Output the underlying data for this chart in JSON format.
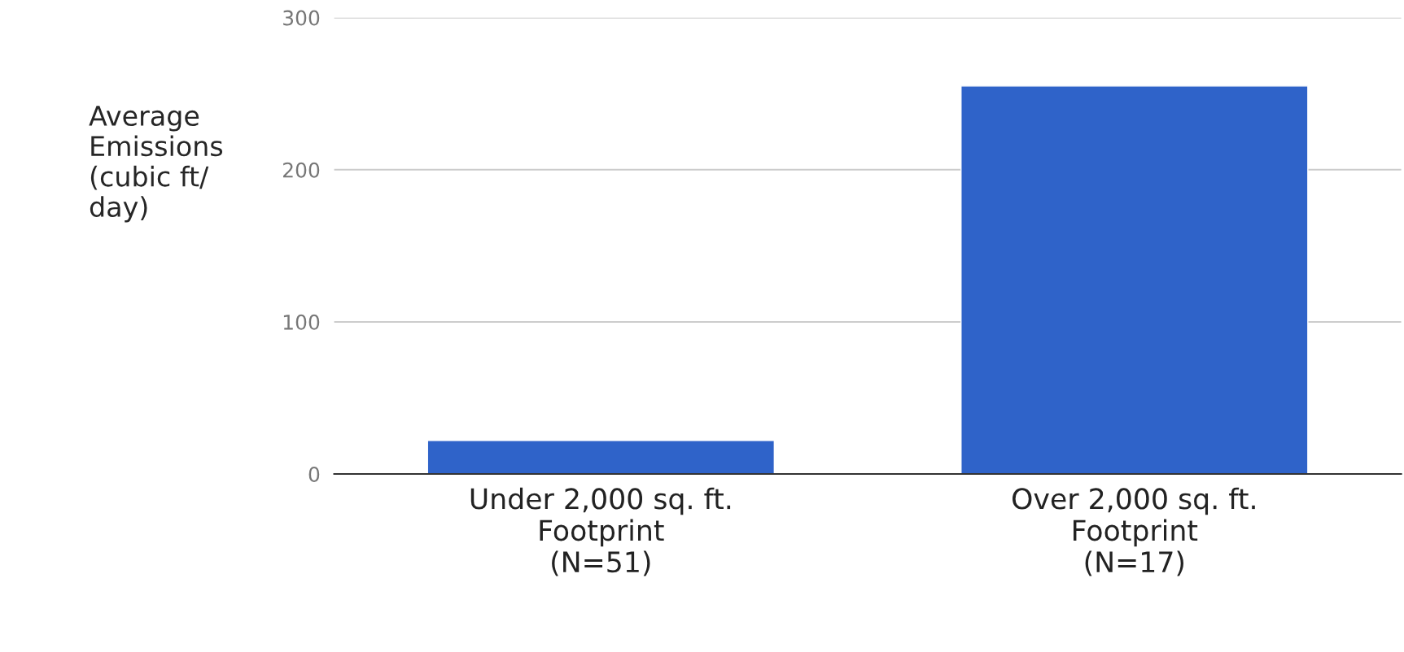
{
  "chart_data": {
    "type": "bar",
    "ylabel": "Average\nEmissions\n(cubic ft/\nday)",
    "categories": [
      "Under 2,000 sq. ft.\nFootprint\n(N=51)",
      "Over 2,000 sq. ft.\nFootprint\n(N=17)"
    ],
    "values": [
      22,
      255
    ],
    "color": "#2f63c9",
    "ylim": [
      0,
      300
    ],
    "yticks": [
      0,
      100,
      200,
      300
    ],
    "grid": "y"
  }
}
